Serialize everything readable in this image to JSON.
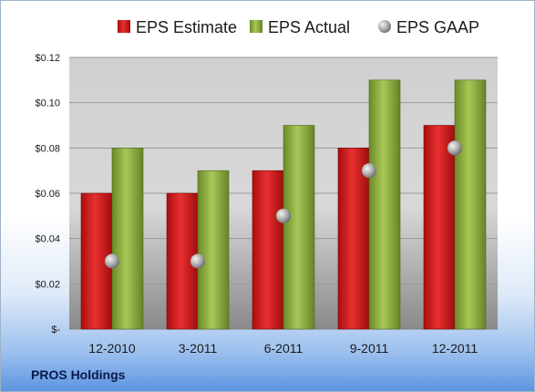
{
  "company": "PROS Holdings",
  "chart_data": {
    "type": "bar",
    "title": "",
    "xlabel": "",
    "ylabel": "",
    "categories": [
      "12-2010",
      "3-2011",
      "6-2011",
      "9-2011",
      "12-2011"
    ],
    "series": [
      {
        "name": "EPS Estimate",
        "kind": "bar",
        "color": "#d42020",
        "values": [
          0.06,
          0.06,
          0.07,
          0.08,
          0.09
        ]
      },
      {
        "name": "EPS Actual",
        "kind": "bar",
        "color": "#8fb040",
        "values": [
          0.08,
          0.07,
          0.09,
          0.11,
          0.11
        ]
      },
      {
        "name": "EPS GAAP",
        "kind": "scatter",
        "color": "#a0a0a0",
        "values": [
          0.03,
          0.03,
          0.05,
          0.07,
          0.08
        ]
      }
    ],
    "ylim": [
      0,
      0.12
    ],
    "yticks": [
      0,
      0.02,
      0.04,
      0.06,
      0.08,
      0.1,
      0.12
    ],
    "ytick_labels": [
      "$-",
      "$0.02",
      "$0.04",
      "$0.06",
      "$0.08",
      "$0.10",
      "$0.12"
    ],
    "grid": true,
    "legend_position": "top"
  }
}
